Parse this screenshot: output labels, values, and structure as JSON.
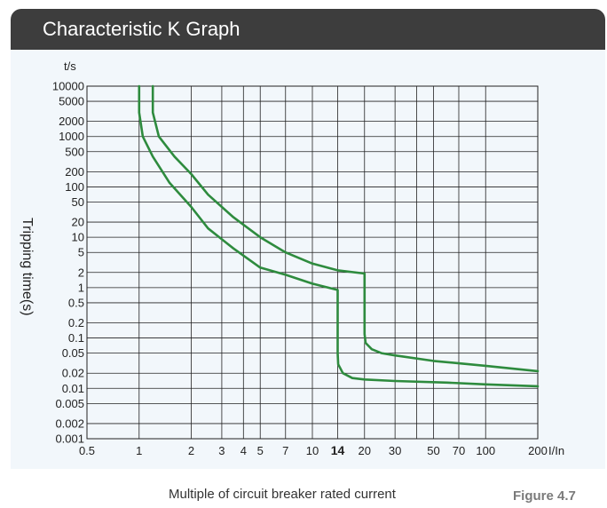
{
  "header": {
    "title": "Characteristic K Graph"
  },
  "caption": "Multiple of circuit breaker rated current",
  "figure_label": "Figure 4.7",
  "colors": {
    "header_bg": "#3d3d3d",
    "panel_bg": "#f2f7fb",
    "curve": "#2e8b3e",
    "grid": "#222222"
  },
  "chart_data": {
    "type": "line",
    "title": "Characteristic K Graph",
    "xlabel": "I/In",
    "ylabel": "Tripping time(s)",
    "ylabel_top": "t/s",
    "x_scale": "log",
    "y_scale": "log",
    "xlim": [
      0.5,
      200
    ],
    "ylim": [
      0.001,
      10000
    ],
    "grid": true,
    "x_ticks": [
      {
        "value": 0.5,
        "label": "0.5"
      },
      {
        "value": 1,
        "label": "1"
      },
      {
        "value": 2,
        "label": "2"
      },
      {
        "value": 3,
        "label": "3"
      },
      {
        "value": 4,
        "label": "4"
      },
      {
        "value": 5,
        "label": "5"
      },
      {
        "value": 7,
        "label": "7"
      },
      {
        "value": 10,
        "label": "10"
      },
      {
        "value": 14,
        "label": "14",
        "bold": true
      },
      {
        "value": 20,
        "label": "20"
      },
      {
        "value": 30,
        "label": "30"
      },
      {
        "value": 50,
        "label": "50"
      },
      {
        "value": 70,
        "label": "70"
      },
      {
        "value": 100,
        "label": "100"
      },
      {
        "value": 200,
        "label": "200"
      }
    ],
    "x_gridlines": [
      0.5,
      1,
      2,
      3,
      4,
      5,
      7,
      10,
      14,
      20,
      30,
      40,
      50,
      70,
      100,
      200
    ],
    "y_ticks": [
      {
        "value": 10000,
        "label": "10000"
      },
      {
        "value": 5000,
        "label": "5000"
      },
      {
        "value": 2000,
        "label": "2000"
      },
      {
        "value": 1000,
        "label": "1000"
      },
      {
        "value": 500,
        "label": "500"
      },
      {
        "value": 200,
        "label": "200"
      },
      {
        "value": 100,
        "label": "100"
      },
      {
        "value": 50,
        "label": "50"
      },
      {
        "value": 20,
        "label": "20"
      },
      {
        "value": 10,
        "label": "10"
      },
      {
        "value": 5,
        "label": "5"
      },
      {
        "value": 2,
        "label": "2"
      },
      {
        "value": 1,
        "label": "1"
      },
      {
        "value": 0.5,
        "label": "0.5"
      },
      {
        "value": 0.2,
        "label": "0.2"
      },
      {
        "value": 0.1,
        "label": "0.1"
      },
      {
        "value": 0.05,
        "label": "0.05"
      },
      {
        "value": 0.02,
        "label": "0.02"
      },
      {
        "value": 0.01,
        "label": "0.01"
      },
      {
        "value": 0.005,
        "label": "0.005"
      },
      {
        "value": 0.002,
        "label": "0.002"
      },
      {
        "value": 0.001,
        "label": "0.001"
      }
    ],
    "series": [
      {
        "x": [
          1.0,
          1.0,
          1.05,
          1.2,
          1.5,
          2.0,
          2.5,
          3.5,
          5.0,
          7.0,
          10.0,
          14.0,
          14.0,
          14.1,
          15.0,
          17.0,
          20.0,
          30.0,
          60.0,
          100.0,
          200.0
        ],
        "y": [
          10000,
          3000,
          1000,
          400,
          120,
          40,
          15,
          6,
          2.5,
          1.8,
          1.2,
          0.9,
          0.05,
          0.03,
          0.02,
          0.016,
          0.015,
          0.014,
          0.013,
          0.012,
          0.011
        ]
      },
      {
        "x": [
          1.2,
          1.2,
          1.3,
          1.6,
          2.0,
          2.5,
          3.5,
          5.0,
          7.0,
          10.0,
          14.0,
          20.0,
          20.0,
          20.3,
          22.0,
          25.0,
          30.0,
          50.0,
          100.0,
          200.0
        ],
        "y": [
          10000,
          3000,
          1000,
          400,
          180,
          70,
          25,
          10,
          5,
          3,
          2.2,
          1.9,
          0.12,
          0.08,
          0.06,
          0.05,
          0.045,
          0.035,
          0.028,
          0.022
        ]
      }
    ]
  }
}
